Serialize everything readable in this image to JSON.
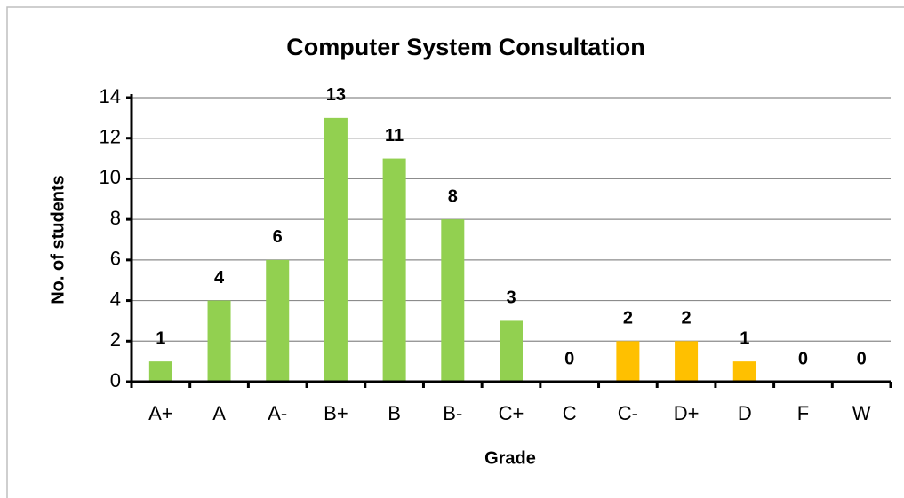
{
  "chart_data": {
    "type": "bar",
    "title": "Computer System Consultation",
    "x_label": "Grade",
    "y_label": "No. of students",
    "categories": [
      "A+",
      "A",
      "A-",
      "B+",
      "B",
      "B-",
      "C+",
      "C",
      "C-",
      "D+",
      "D",
      "F",
      "W"
    ],
    "values": [
      1,
      4,
      6,
      13,
      11,
      8,
      3,
      0,
      2,
      2,
      1,
      0,
      0
    ],
    "colors": [
      "#92d050",
      "#92d050",
      "#92d050",
      "#92d050",
      "#92d050",
      "#92d050",
      "#92d050",
      "#92d050",
      "#ffc000",
      "#ffc000",
      "#ffc000",
      "#ffc000",
      "#ffc000"
    ],
    "ylim": [
      0,
      14
    ],
    "yticks": [
      0,
      2,
      4,
      6,
      8,
      10,
      12,
      14
    ],
    "grid": true
  }
}
